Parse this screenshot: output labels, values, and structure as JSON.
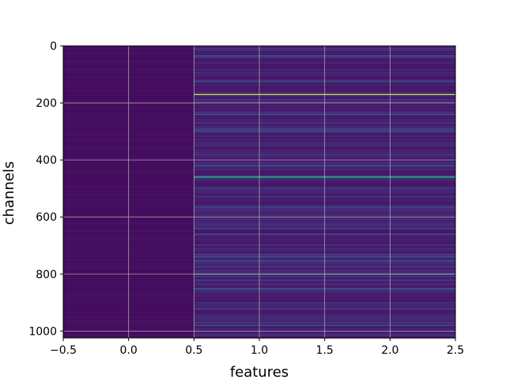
{
  "chart_data": {
    "type": "heatmap",
    "title": "",
    "xlabel": "features",
    "ylabel": "channels",
    "xlim": [
      -0.5,
      2.5
    ],
    "ylim": [
      1024,
      0
    ],
    "y_inverted": true,
    "colormap": "viridis",
    "grid": true,
    "x_ticks": [
      -0.5,
      0.0,
      0.5,
      1.0,
      1.5,
      2.0,
      2.5
    ],
    "x_tick_labels": [
      "−0.5",
      "0.0",
      "0.5",
      "1.0",
      "1.5",
      "2.0",
      "2.5"
    ],
    "y_ticks": [
      0,
      200,
      400,
      600,
      800,
      1000
    ],
    "y_tick_labels": [
      "0",
      "200",
      "400",
      "600",
      "800",
      "1000"
    ],
    "columns": [
      {
        "feature": 0,
        "x_range": [
          -0.5,
          0.5
        ],
        "base_level": 0.04,
        "noise": 0.04
      },
      {
        "feature": 1,
        "x_range": [
          0.5,
          2.5
        ],
        "base_level": 0.08,
        "noise": 0.18
      }
    ],
    "highlighted_rows": [
      {
        "channel": 170,
        "feature_range": [
          1,
          2
        ],
        "level": 0.97
      },
      {
        "channel": 458,
        "feature_range": [
          1,
          2
        ],
        "level": 0.72
      },
      {
        "channel": 462,
        "feature_range": [
          1,
          2
        ],
        "level": 0.55
      },
      {
        "channel": 800,
        "feature_range": [
          1,
          2
        ],
        "level": 0.68
      },
      {
        "channel": 35,
        "feature_range": [
          1,
          2
        ],
        "level": 0.42
      },
      {
        "channel": 125,
        "feature_range": [
          1,
          2
        ],
        "level": 0.38
      },
      {
        "channel": 240,
        "feature_range": [
          1,
          2
        ],
        "level": 0.35
      },
      {
        "channel": 300,
        "feature_range": [
          1,
          2
        ],
        "level": 0.33
      },
      {
        "channel": 420,
        "feature_range": [
          1,
          2
        ],
        "level": 0.32
      },
      {
        "channel": 565,
        "feature_range": [
          1,
          2
        ],
        "level": 0.36
      },
      {
        "channel": 660,
        "feature_range": [
          1,
          2
        ],
        "level": 0.34
      },
      {
        "channel": 740,
        "feature_range": [
          1,
          2
        ],
        "level": 0.37
      },
      {
        "channel": 850,
        "feature_range": [
          1,
          2
        ],
        "level": 0.33
      },
      {
        "channel": 980,
        "feature_range": [
          1,
          2
        ],
        "level": 0.4
      }
    ]
  }
}
